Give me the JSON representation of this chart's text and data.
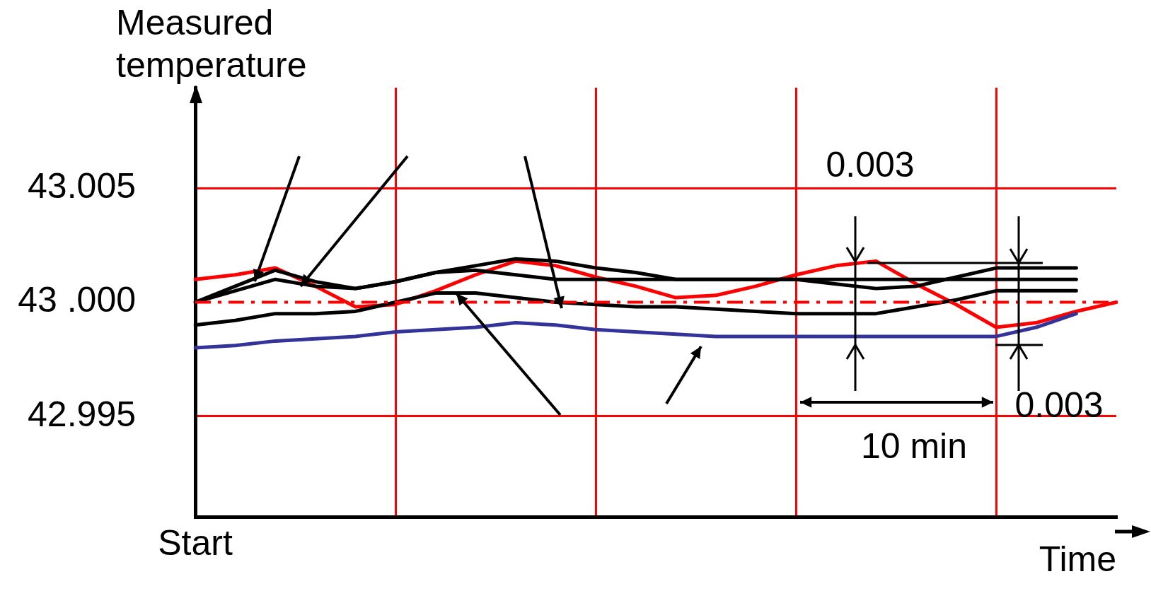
{
  "chart_data": {
    "type": "line",
    "xlabel": "Time",
    "ylabel": "Measured temperature",
    "categories": [
      "Start",
      null,
      null,
      null,
      null,
      null,
      null,
      null,
      null,
      null,
      null,
      null,
      null,
      null,
      null,
      null,
      null,
      null,
      null,
      null,
      null,
      null,
      null,
      null
    ],
    "ylim": [
      42.9906,
      43.0094
    ],
    "yticks": [
      {
        "value": 42.995,
        "label": "42.995"
      },
      {
        "value": 43,
        "label": "43 .000"
      },
      {
        "value": 43.005,
        "label": "43.005"
      }
    ],
    "grid": true,
    "legend": false,
    "marker": "none",
    "ref_lines": [
      {
        "axis": "y",
        "value": 43,
        "color": "#ff0000",
        "line_style": "dashed"
      }
    ],
    "annotations": [
      "0.003",
      "0.003",
      "10 min"
    ],
    "series": [
      {
        "color": "#000000",
        "values": [
          43.0,
          43.0007,
          43.0014,
          43.0009,
          43.0006,
          43.0009,
          43.0013,
          43.0016,
          43.0019,
          43.0018,
          43.0015,
          43.0013,
          43.001,
          43.001,
          43.001,
          43.001,
          43.0008,
          43.0006,
          43.0007,
          43.0011,
          43.0015,
          43.0015,
          43.0015,
          null
        ]
      },
      {
        "color": "#000000",
        "values": [
          43.0,
          43.0005,
          43.001,
          43.0007,
          43.0006,
          43.0009,
          43.0013,
          43.0014,
          43.0012,
          43.001,
          43.001,
          43.001,
          43.001,
          43.001,
          43.001,
          43.001,
          43.001,
          43.001,
          43.001,
          43.001,
          43.001,
          43.001,
          43.001,
          null
        ]
      },
      {
        "color": "#000000",
        "values": [
          42.999,
          42.9992,
          42.9995,
          42.9995,
          42.9996,
          43.0,
          43.0004,
          43.0004,
          43.0002,
          43.0,
          42.9999,
          42.9998,
          42.9998,
          42.9997,
          42.9996,
          42.9995,
          42.9995,
          42.9995,
          42.9998,
          43.0001,
          43.0005,
          43.0005,
          43.0005,
          null
        ]
      },
      {
        "color": "#333399",
        "values": [
          42.998,
          42.9981,
          42.9983,
          42.9984,
          42.9985,
          42.9987,
          42.9988,
          42.9989,
          42.9991,
          42.999,
          42.9988,
          42.9987,
          42.9986,
          42.9985,
          42.9985,
          42.9985,
          42.9985,
          42.9985,
          42.9985,
          42.9985,
          42.9985,
          42.9989,
          42.9995,
          null
        ]
      },
      {
        "color": "#ff0000",
        "values": [
          43.001,
          43.0012,
          43.0015,
          43.0007,
          42.9998,
          42.9999,
          43.0005,
          43.0012,
          43.0018,
          43.0016,
          43.0011,
          43.0007,
          43.0002,
          43.0003,
          43.0007,
          43.0012,
          43.0016,
          43.0018,
          43.0008,
          42.9999,
          42.9989,
          42.9991,
          42.9996,
          43.0
        ]
      }
    ]
  }
}
